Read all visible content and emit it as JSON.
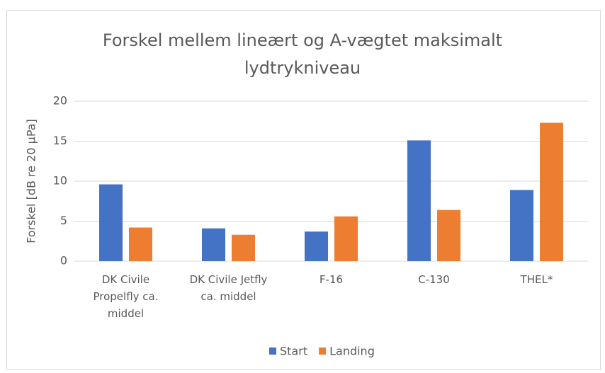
{
  "chart_data": {
    "type": "bar",
    "title": "Forskel mellem lineært og A-vægtet maksimalt lydtrykniveau",
    "y_label": "Forskel [dB re 20 µPa]",
    "categories": [
      "DK Civile Propelfly ca. middel",
      "DK Civile Jetfly ca. middel",
      "F-16",
      "C-130",
      "THEL*"
    ],
    "series": [
      {
        "name": "Start",
        "color": "#4472c4",
        "values": [
          9.6,
          4.1,
          3.7,
          15.1,
          8.9
        ]
      },
      {
        "name": "Landing",
        "color": "#ed7d31",
        "values": [
          4.2,
          3.3,
          5.6,
          6.4,
          17.3
        ]
      }
    ],
    "ylim": [
      0,
      20
    ],
    "yticks": [
      0,
      5,
      10,
      15,
      20
    ],
    "grid": true,
    "legend": "bottom"
  }
}
